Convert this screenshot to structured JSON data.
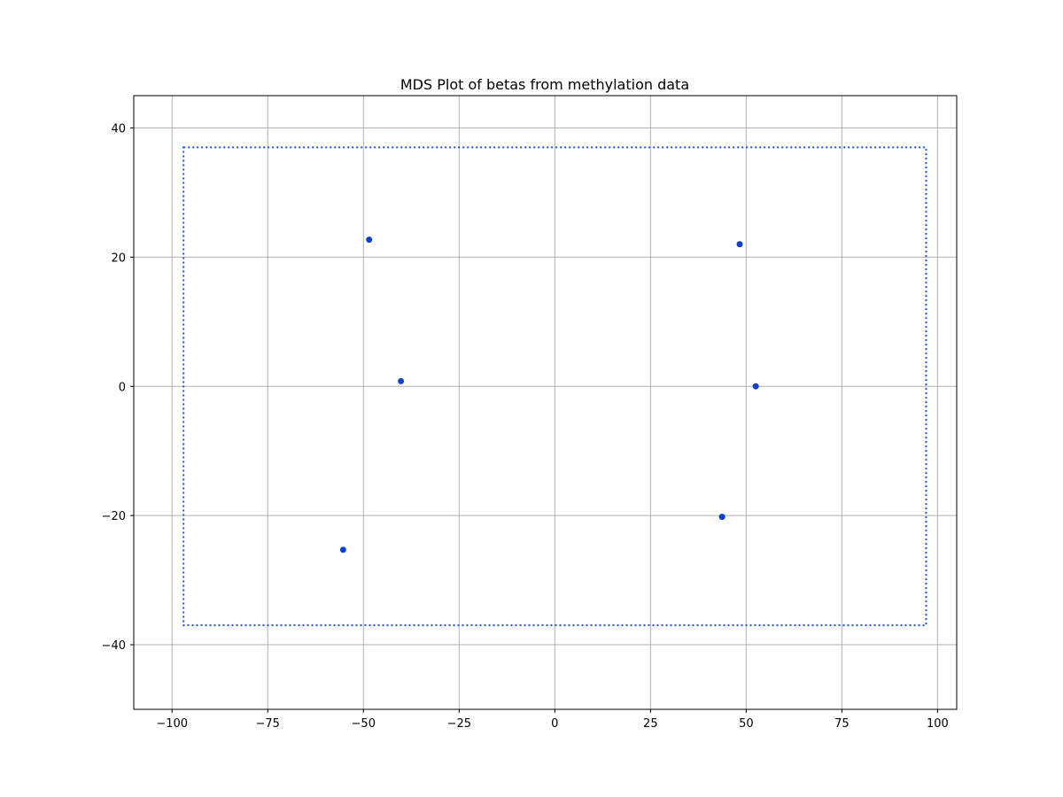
{
  "chart_data": {
    "type": "scatter",
    "title": "MDS Plot of betas from methylation data",
    "xlabel": "",
    "ylabel": "",
    "xlim": [
      -110,
      105
    ],
    "ylim": [
      -50,
      45
    ],
    "xticks": [
      -100,
      -75,
      -50,
      -25,
      0,
      25,
      50,
      75,
      100
    ],
    "yticks": [
      -40,
      -20,
      0,
      20,
      40
    ],
    "xtick_labels": [
      "−100",
      "−75",
      "−50",
      "−25",
      "0",
      "25",
      "50",
      "75",
      "100"
    ],
    "ytick_labels": [
      "−40",
      "−20",
      "0",
      "20",
      "40"
    ],
    "grid": true,
    "point_color": "#0a3fcc",
    "box_color": "#1f4fe0",
    "grid_color": "#b0b0b0",
    "boundary_box": {
      "x": [
        -97,
        97
      ],
      "y": [
        -37,
        37
      ],
      "style": "dotted"
    },
    "series": [
      {
        "points": [
          {
            "x": -48.5,
            "y": 22.7
          },
          {
            "x": -40.2,
            "y": 0.8
          },
          {
            "x": -55.3,
            "y": -25.3
          },
          {
            "x": 48.3,
            "y": 22.0
          },
          {
            "x": 52.5,
            "y": 0.0
          },
          {
            "x": 43.7,
            "y": -20.2
          }
        ]
      }
    ]
  }
}
